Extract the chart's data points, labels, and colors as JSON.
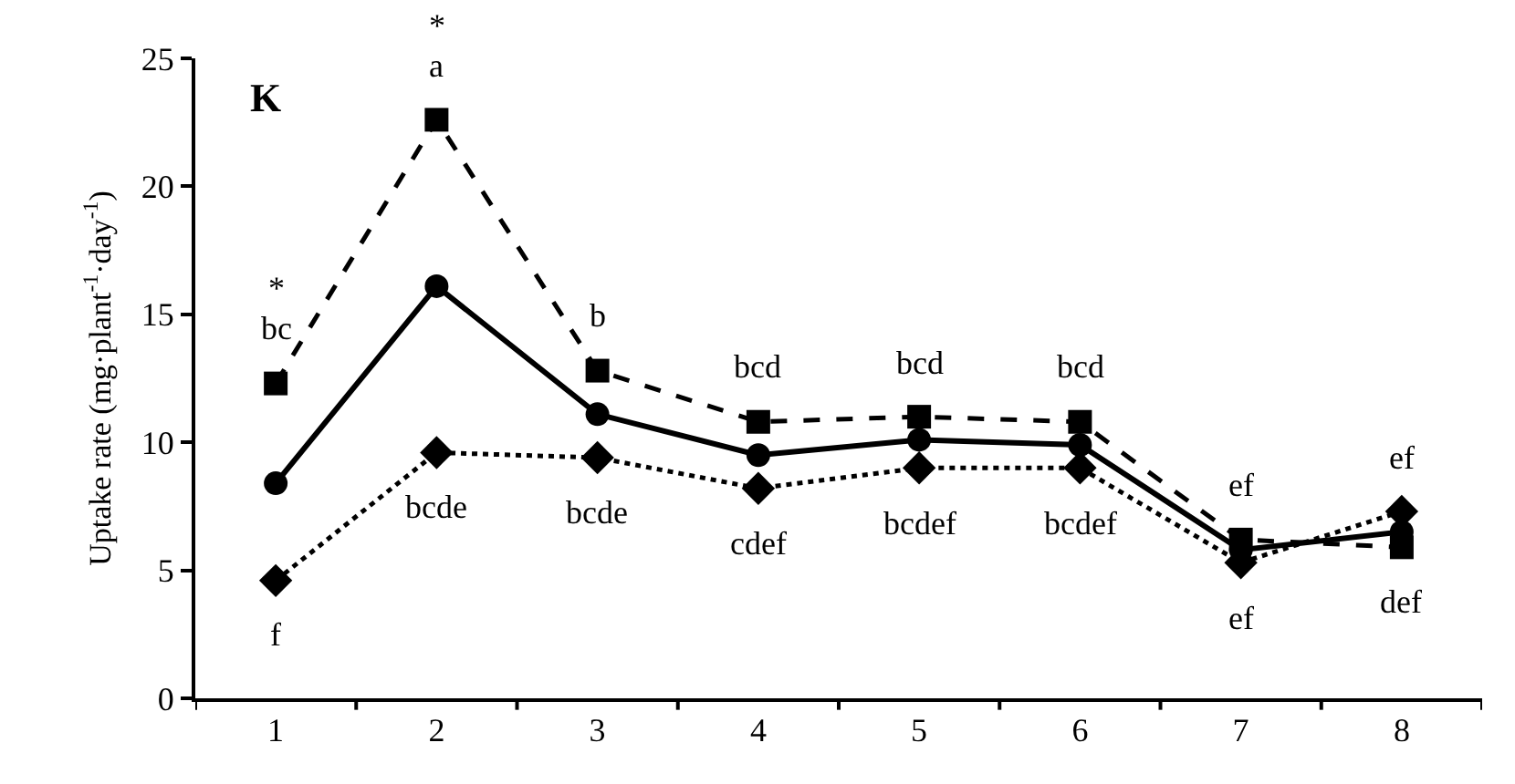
{
  "chart_data": {
    "type": "line",
    "ylabel": "Uptake rate (mg·plant$^{-1}$·day$^{-1}$)",
    "categories": [
      "1",
      "2",
      "3",
      "4",
      "5",
      "6",
      "7",
      "8"
    ],
    "series": [
      {
        "color": "#000000",
        "marker": "square",
        "line_style": "dashed",
        "values": [
          12.3,
          22.6,
          12.8,
          10.8,
          11.0,
          10.8,
          6.2,
          5.9
        ]
      },
      {
        "color": "#000000",
        "marker": "circle",
        "line_style": "solid",
        "values": [
          8.4,
          16.1,
          11.1,
          9.5,
          10.1,
          9.9,
          5.8,
          6.5
        ]
      },
      {
        "color": "#000000",
        "marker": "diamond",
        "line_style": "dotted",
        "values": [
          4.6,
          9.6,
          9.4,
          8.2,
          9.0,
          9.0,
          5.3,
          7.3
        ]
      }
    ],
    "ylim": [
      0,
      25
    ],
    "yticks": [
      0,
      5,
      10,
      15,
      20,
      25
    ],
    "grid": false,
    "annotations": [
      "K",
      {
        "text": "bc",
        "x": "1",
        "y": 12.3
      },
      {
        "text": "*",
        "x": "1",
        "y": 12.3
      },
      {
        "text": "f",
        "x": "1",
        "y": 4.6
      },
      {
        "text": "a",
        "x": "2",
        "y": 22.6
      },
      {
        "text": "*",
        "x": "2",
        "y": 22.6
      },
      {
        "text": "bcde",
        "x": "2",
        "y": 9.6
      },
      {
        "text": "b",
        "x": "3",
        "y": 12.8
      },
      {
        "text": "bcde",
        "x": "3",
        "y": 9.4
      },
      {
        "text": "bcd",
        "x": "4",
        "y": 10.8
      },
      {
        "text": "cdef",
        "x": "4",
        "y": 8.2
      },
      {
        "text": "bcd",
        "x": "5",
        "y": 11.0
      },
      {
        "text": "bcdef",
        "x": "5",
        "y": 9.0
      },
      {
        "text": "bcd",
        "x": "6",
        "y": 10.8
      },
      {
        "text": "bcdef",
        "x": "6",
        "y": 9.0
      },
      {
        "text": "ef",
        "x": "7",
        "y": 6.2
      },
      {
        "text": "ef",
        "x": "7",
        "y": 5.3
      },
      {
        "text": "ef",
        "x": "8",
        "y": 7.3
      },
      {
        "text": "def",
        "x": "8",
        "y": 5.9
      }
    ]
  }
}
